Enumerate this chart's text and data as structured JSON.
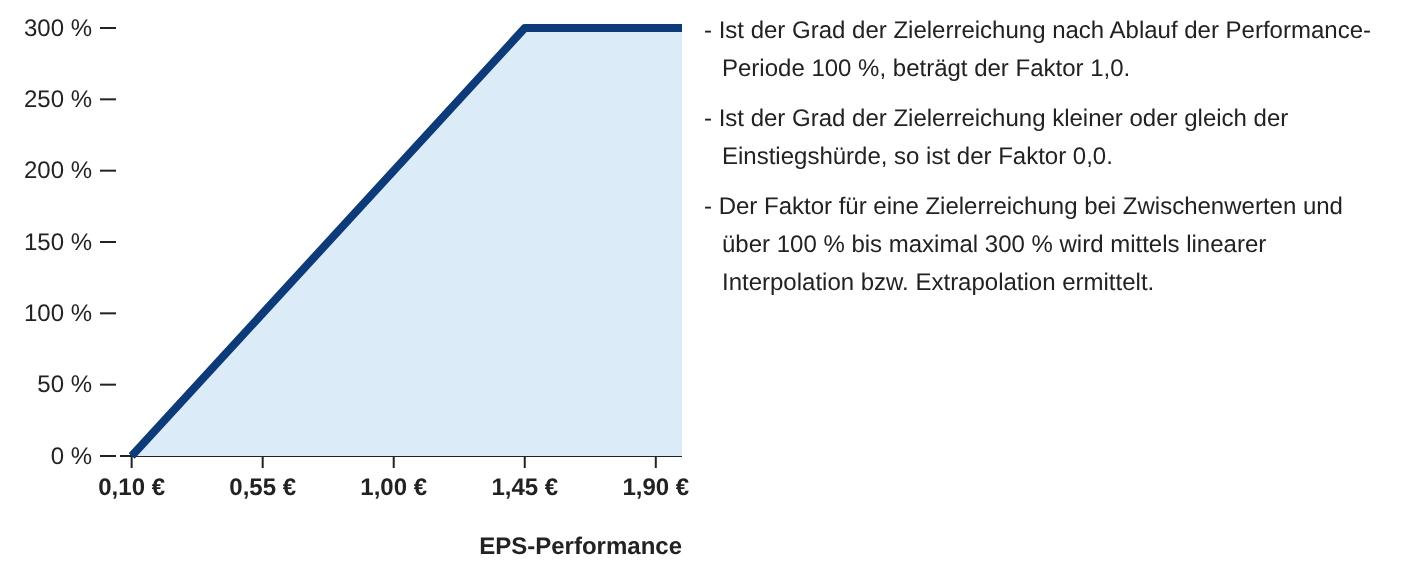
{
  "chart_data": {
    "type": "area",
    "xlabel": "EPS-Performance",
    "x": [
      0.1,
      1.45,
      1.99
    ],
    "series": [
      {
        "color": "#0d3a78",
        "values": [
          0,
          300,
          300
        ]
      }
    ],
    "xlim": [
      0.06,
      1.99
    ],
    "xticks": [
      {
        "value": 0.1,
        "label": "0,10 €"
      },
      {
        "value": 0.55,
        "label": "0,55 €"
      },
      {
        "value": 1.0,
        "label": "1,00 €"
      },
      {
        "value": 1.45,
        "label": "1,45 €"
      },
      {
        "value": 1.9,
        "label": "1,90 €"
      }
    ],
    "ylim": [
      0,
      300
    ],
    "yticks": [
      {
        "value": 0,
        "label": "0 %"
      },
      {
        "value": 50,
        "label": "50 %"
      },
      {
        "value": 100,
        "label": "100 %"
      },
      {
        "value": 150,
        "label": "150 %"
      },
      {
        "value": 200,
        "label": "200 %"
      },
      {
        "value": 250,
        "label": "250 %"
      },
      {
        "value": 300,
        "label": "300 %"
      }
    ],
    "annotations": [
      "- Ist der Grad der Zielerreichung nach Ablauf der Performance-Periode 100 %, beträgt der Faktor 1,0.",
      "- Ist der Grad der Zielerreichung kleiner oder gleich der Einstiegshürde, so ist der Faktor 0,0.",
      "- Der Faktor für eine Zielerreichung bei Zwischenwerten und über 100 % bis maximal 300 % wird mittels linearer Interpolation bzw. Extrapolation ermittelt."
    ]
  }
}
